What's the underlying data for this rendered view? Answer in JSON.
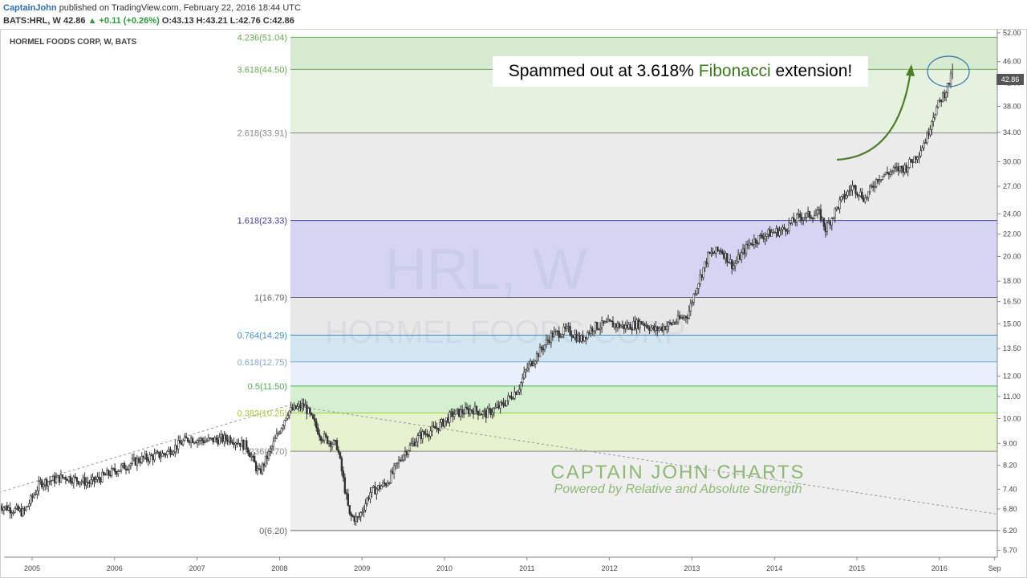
{
  "header": {
    "author": "CaptainJohn",
    "published": "published on TradingView.com, February 22, 2016 18:44 UTC",
    "symbol_line": "BATS:HRL, W",
    "last": "42.86",
    "change": "+0.11 (+0.26%)",
    "ohlc": "O:43.13 H:43.21 L:42.76 C:42.86"
  },
  "chart_title": "HORMEL FOODS CORP, W, BATS",
  "watermark": {
    "symbol": "HRL, W",
    "name": "HORMEL FOODS CORP"
  },
  "callout": {
    "before": "Spammed out at 3.618% ",
    "highlight": "Fibonacci",
    "after": " extension!"
  },
  "brand": {
    "title": "CAPTAIN JOHN CHARTS",
    "subtitle": "Powered by Relative and Absolute Strength"
  },
  "last_price_badge": "42.86",
  "colors": {
    "candle": "#333333",
    "trendline": "#999999",
    "arrow": "#4e7d2a",
    "ellipse": "#3a6fb0"
  },
  "chart_data": {
    "type": "candlestick",
    "title": "HORMEL FOODS CORP, W, BATS",
    "x_ticks": [
      "2005",
      "2006",
      "2007",
      "2008",
      "2009",
      "2010",
      "2011",
      "2012",
      "2013",
      "2014",
      "2015",
      "2016",
      "Sep"
    ],
    "y_ticks": [
      "52.00",
      "46.00",
      "42.00",
      "38.00",
      "34.00",
      "30.00",
      "27.00",
      "24.00",
      "22.00",
      "20.00",
      "18.00",
      "16.50",
      "15.00",
      "13.50",
      "12.00",
      "11.00",
      "10.00",
      "9.00",
      "8.20",
      "7.40",
      "6.80",
      "6.20",
      "5.70"
    ],
    "y_scale": "log",
    "ylim": [
      5.4,
      54
    ],
    "fib_levels": [
      {
        "label": "4.236(51.04)",
        "price": 51.04,
        "color": "#6aa84f"
      },
      {
        "label": "3.618(44.50)",
        "price": 44.5,
        "color": "#6aa84f"
      },
      {
        "label": "2.618(33.91)",
        "price": 33.91,
        "color": "#888888"
      },
      {
        "label": "1.618(23.33)",
        "price": 23.33,
        "color": "#3c3ca0"
      },
      {
        "label": "1(16.79)",
        "price": 16.79,
        "color": "#666666"
      },
      {
        "label": "0.764(14.29)",
        "price": 14.29,
        "color": "#3d8fbf"
      },
      {
        "label": "0.618(12.75)",
        "price": 12.75,
        "color": "#7fa8d8"
      },
      {
        "label": "0.5(11.50)",
        "price": 11.5,
        "color": "#4caf50"
      },
      {
        "label": "0.382(10.25)",
        "price": 10.25,
        "color": "#9acd32"
      },
      {
        "label": "0.236(8.70)",
        "price": 8.7,
        "color": "#888888"
      },
      {
        "label": "0(6.20)",
        "price": 6.2,
        "color": "#666666"
      }
    ],
    "fib_zones": [
      {
        "from": 44.5,
        "to": 51.04,
        "color": "#d6ebcf"
      },
      {
        "from": 33.91,
        "to": 44.5,
        "color": "#e6f2e0"
      },
      {
        "from": 23.33,
        "to": 33.91,
        "color": "#ebebeb"
      },
      {
        "from": 16.79,
        "to": 23.33,
        "color": "#d5d5f3"
      },
      {
        "from": 14.29,
        "to": 16.79,
        "color": "#e8e8e8"
      },
      {
        "from": 12.75,
        "to": 14.29,
        "color": "#d3e7f3"
      },
      {
        "from": 11.5,
        "to": 12.75,
        "color": "#e9f0fb"
      },
      {
        "from": 10.25,
        "to": 11.5,
        "color": "#d4f0d0"
      },
      {
        "from": 8.7,
        "to": 10.25,
        "color": "#e6f2cf"
      },
      {
        "from": 6.2,
        "to": 8.7,
        "color": "#efefef"
      }
    ],
    "price_path": [
      [
        2004.6,
        6.9
      ],
      [
        2004.9,
        6.7
      ],
      [
        2005.1,
        7.6
      ],
      [
        2005.4,
        7.8
      ],
      [
        2005.7,
        7.6
      ],
      [
        2006.0,
        8.0
      ],
      [
        2006.3,
        8.4
      ],
      [
        2006.6,
        8.6
      ],
      [
        2006.9,
        9.2
      ],
      [
        2007.1,
        9.1
      ],
      [
        2007.4,
        9.2
      ],
      [
        2007.6,
        8.9
      ],
      [
        2007.75,
        7.9
      ],
      [
        2007.9,
        8.8
      ],
      [
        2008.1,
        10.3
      ],
      [
        2008.3,
        10.6
      ],
      [
        2008.5,
        9.3
      ],
      [
        2008.7,
        8.9
      ],
      [
        2008.85,
        6.6
      ],
      [
        2008.95,
        6.5
      ],
      [
        2009.1,
        7.3
      ],
      [
        2009.3,
        7.6
      ],
      [
        2009.5,
        8.6
      ],
      [
        2009.7,
        9.3
      ],
      [
        2009.9,
        9.6
      ],
      [
        2010.1,
        10.2
      ],
      [
        2010.35,
        10.4
      ],
      [
        2010.5,
        10.2
      ],
      [
        2010.7,
        10.6
      ],
      [
        2010.9,
        11.4
      ],
      [
        2011.0,
        12.4
      ],
      [
        2011.15,
        13.3
      ],
      [
        2011.3,
        14.3
      ],
      [
        2011.5,
        14.6
      ],
      [
        2011.65,
        14.0
      ],
      [
        2011.8,
        14.8
      ],
      [
        2012.0,
        15.0
      ],
      [
        2012.2,
        14.8
      ],
      [
        2012.4,
        15.1
      ],
      [
        2012.55,
        14.6
      ],
      [
        2012.75,
        15.0
      ],
      [
        2012.95,
        15.6
      ],
      [
        2013.05,
        17.5
      ],
      [
        2013.2,
        20.1
      ],
      [
        2013.35,
        20.6
      ],
      [
        2013.5,
        19.2
      ],
      [
        2013.7,
        21.2
      ],
      [
        2013.9,
        22.0
      ],
      [
        2014.1,
        22.4
      ],
      [
        2014.3,
        23.7
      ],
      [
        2014.55,
        24.0
      ],
      [
        2014.62,
        22.5
      ],
      [
        2014.8,
        25.3
      ],
      [
        2014.95,
        27.0
      ],
      [
        2015.1,
        25.6
      ],
      [
        2015.25,
        28.0
      ],
      [
        2015.45,
        28.9
      ],
      [
        2015.6,
        29.3
      ],
      [
        2015.75,
        31.2
      ],
      [
        2015.85,
        33.4
      ],
      [
        2015.92,
        36.5
      ],
      [
        2016.02,
        39.2
      ],
      [
        2016.08,
        40.7
      ],
      [
        2016.14,
        42.9
      ]
    ],
    "trendlines": [
      {
        "from": [
          2004.6,
          7.3
        ],
        "to": [
          2008.12,
          10.6
        ]
      },
      {
        "from": [
          2008.12,
          10.6
        ],
        "to": [
          2016.7,
          6.65
        ]
      }
    ]
  }
}
